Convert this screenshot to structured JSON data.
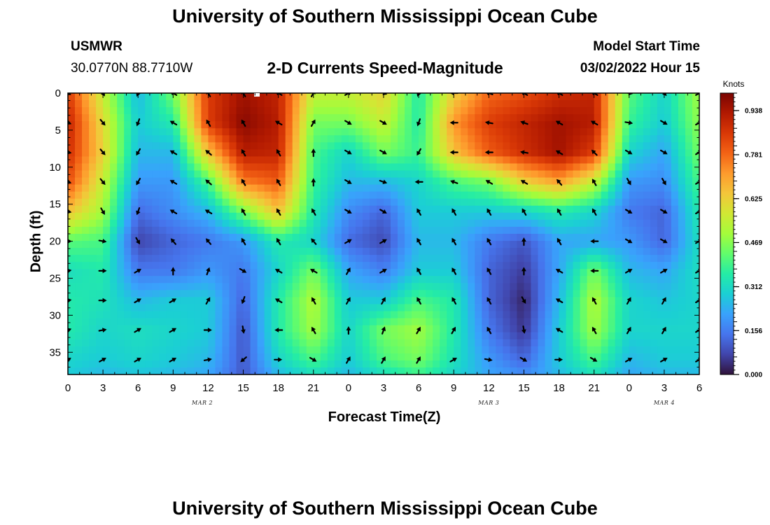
{
  "header": {
    "title": "University of Southern Mississippi Ocean Cube",
    "station": "USMWR",
    "coords": "30.0770N  88.7710W",
    "heading": "2-D Currents Speed-Magnitude",
    "model_label": "Model Start Time",
    "model_time": "03/02/2022 Hour 15"
  },
  "footer": {
    "title": "University of Southern Mississippi Ocean Cube"
  },
  "colors": {
    "scale": [
      "#30123b",
      "#4145ab",
      "#4675ed",
      "#39a2fc",
      "#1bcfd4",
      "#24eca6",
      "#61fc6c",
      "#a4fc3b",
      "#d1e834",
      "#f3c63a",
      "#fe9b2d",
      "#f36315",
      "#d93806",
      "#b11901",
      "#7a0402"
    ],
    "arrow": "#000000"
  },
  "chart_data": {
    "type": "heatmap",
    "title": "2-D Currents Speed-Magnitude",
    "xlabel": "Forecast Time(Z)",
    "ylabel": "Depth (ft)",
    "x_unit": "forecast hour",
    "xlim": [
      0,
      54
    ],
    "ylim": [
      38,
      0
    ],
    "x_ticks": [
      0,
      3,
      6,
      9,
      12,
      15,
      18,
      21,
      24,
      27,
      30,
      33,
      36,
      39,
      42,
      45,
      48,
      51,
      54
    ],
    "x_tick_labels": [
      "0",
      "3",
      "6",
      "9",
      "12",
      "15",
      "18",
      "21",
      "0",
      "3",
      "6",
      "9",
      "12",
      "15",
      "18",
      "21",
      "0",
      "3",
      "6"
    ],
    "date_labels": [
      {
        "label": "MAR 2",
        "x": 11.5
      },
      {
        "label": "MAR 3",
        "x": 36
      },
      {
        "label": "MAR 4",
        "x": 51
      }
    ],
    "y_ticks": [
      0,
      5,
      10,
      15,
      20,
      25,
      30,
      35
    ],
    "colorbar": {
      "title": "Knots",
      "min": 0,
      "max": 1.0,
      "tick_values": [
        0.0,
        0.156,
        0.312,
        0.469,
        0.625,
        0.781,
        0.938
      ],
      "tick_labels": [
        "0.000",
        "0.156",
        "0.312",
        "0.469",
        "0.625",
        "0.781",
        "0.938"
      ]
    },
    "speed_grid": {
      "x": [
        0,
        3,
        6,
        9,
        12,
        15,
        18,
        21,
        24,
        27,
        30,
        33,
        36,
        39,
        42,
        45,
        48,
        51,
        54
      ],
      "depth": [
        0,
        4,
        8,
        12,
        16,
        20,
        24,
        28,
        32,
        36,
        38
      ],
      "values": [
        [
          0.85,
          0.55,
          0.25,
          0.45,
          0.85,
          0.95,
          0.9,
          0.55,
          0.55,
          0.62,
          0.35,
          0.62,
          0.78,
          0.82,
          0.88,
          0.9,
          0.42,
          0.3,
          0.5
        ],
        [
          0.9,
          0.6,
          0.28,
          0.35,
          0.85,
          0.98,
          0.92,
          0.45,
          0.45,
          0.55,
          0.35,
          0.72,
          0.85,
          0.9,
          0.95,
          0.92,
          0.38,
          0.28,
          0.48
        ],
        [
          0.88,
          0.62,
          0.25,
          0.25,
          0.65,
          0.92,
          0.9,
          0.4,
          0.3,
          0.45,
          0.38,
          0.65,
          0.8,
          0.88,
          0.95,
          0.85,
          0.3,
          0.22,
          0.45
        ],
        [
          0.82,
          0.55,
          0.2,
          0.2,
          0.4,
          0.75,
          0.8,
          0.38,
          0.25,
          0.25,
          0.3,
          0.4,
          0.45,
          0.62,
          0.7,
          0.55,
          0.2,
          0.18,
          0.4
        ],
        [
          0.65,
          0.5,
          0.13,
          0.18,
          0.25,
          0.45,
          0.65,
          0.35,
          0.18,
          0.12,
          0.28,
          0.28,
          0.28,
          0.3,
          0.35,
          0.3,
          0.15,
          0.12,
          0.35
        ],
        [
          0.42,
          0.4,
          0.07,
          0.12,
          0.15,
          0.2,
          0.35,
          0.3,
          0.13,
          0.08,
          0.25,
          0.25,
          0.15,
          0.1,
          0.22,
          0.22,
          0.2,
          0.12,
          0.32
        ],
        [
          0.32,
          0.35,
          0.15,
          0.15,
          0.2,
          0.15,
          0.3,
          0.45,
          0.22,
          0.16,
          0.28,
          0.28,
          0.12,
          0.06,
          0.22,
          0.45,
          0.25,
          0.22,
          0.32
        ],
        [
          0.35,
          0.33,
          0.25,
          0.28,
          0.28,
          0.12,
          0.35,
          0.52,
          0.28,
          0.28,
          0.4,
          0.35,
          0.12,
          0.03,
          0.25,
          0.52,
          0.3,
          0.27,
          0.3
        ],
        [
          0.35,
          0.3,
          0.32,
          0.3,
          0.28,
          0.1,
          0.35,
          0.5,
          0.3,
          0.45,
          0.5,
          0.35,
          0.15,
          0.05,
          0.28,
          0.5,
          0.3,
          0.3,
          0.3
        ],
        [
          0.3,
          0.28,
          0.3,
          0.28,
          0.25,
          0.1,
          0.3,
          0.4,
          0.28,
          0.4,
          0.45,
          0.33,
          0.2,
          0.12,
          0.28,
          0.4,
          0.25,
          0.28,
          0.28
        ],
        [
          0.28,
          0.25,
          0.27,
          0.25,
          0.22,
          0.1,
          0.25,
          0.32,
          0.25,
          0.32,
          0.38,
          0.3,
          0.22,
          0.18,
          0.25,
          0.33,
          0.22,
          0.25,
          0.25
        ]
      ]
    },
    "vectors": {
      "x": [
        0,
        3,
        6,
        9,
        12,
        15,
        18,
        21,
        24,
        27,
        30,
        33,
        36,
        39,
        42,
        45,
        48,
        51,
        54
      ],
      "depth": [
        0,
        4,
        8,
        12,
        16,
        20,
        24,
        28,
        32,
        36
      ],
      "direction_deg": [
        [
          120,
          150,
          200,
          300,
          330,
          330,
          300,
          30,
          60,
          110,
          200,
          270,
          290,
          300,
          300,
          300,
          100,
          140,
          60
        ],
        [
          110,
          140,
          200,
          300,
          330,
          330,
          300,
          30,
          120,
          120,
          200,
          270,
          280,
          290,
          300,
          300,
          100,
          120,
          60
        ],
        [
          100,
          140,
          210,
          300,
          310,
          330,
          330,
          0,
          120,
          120,
          210,
          270,
          270,
          280,
          300,
          315,
          120,
          120,
          60
        ],
        [
          110,
          140,
          210,
          300,
          310,
          330,
          330,
          0,
          120,
          110,
          270,
          290,
          300,
          300,
          320,
          330,
          150,
          150,
          60
        ],
        [
          100,
          150,
          200,
          300,
          300,
          330,
          330,
          330,
          120,
          120,
          330,
          330,
          330,
          330,
          330,
          330,
          120,
          120,
          60
        ],
        [
          90,
          100,
          150,
          320,
          320,
          330,
          330,
          320,
          60,
          60,
          330,
          330,
          330,
          0,
          330,
          270,
          120,
          120,
          60
        ],
        [
          80,
          90,
          60,
          0,
          20,
          120,
          300,
          300,
          30,
          60,
          330,
          330,
          330,
          0,
          300,
          270,
          60,
          60,
          60
        ],
        [
          80,
          90,
          60,
          60,
          30,
          200,
          300,
          330,
          30,
          30,
          330,
          330,
          330,
          150,
          300,
          330,
          30,
          30,
          60
        ],
        [
          70,
          80,
          60,
          60,
          90,
          170,
          270,
          330,
          0,
          20,
          30,
          30,
          330,
          170,
          300,
          330,
          30,
          30,
          60
        ],
        [
          60,
          60,
          60,
          60,
          80,
          230,
          90,
          120,
          30,
          30,
          30,
          60,
          100,
          120,
          90,
          120,
          60,
          60,
          60
        ]
      ]
    }
  }
}
